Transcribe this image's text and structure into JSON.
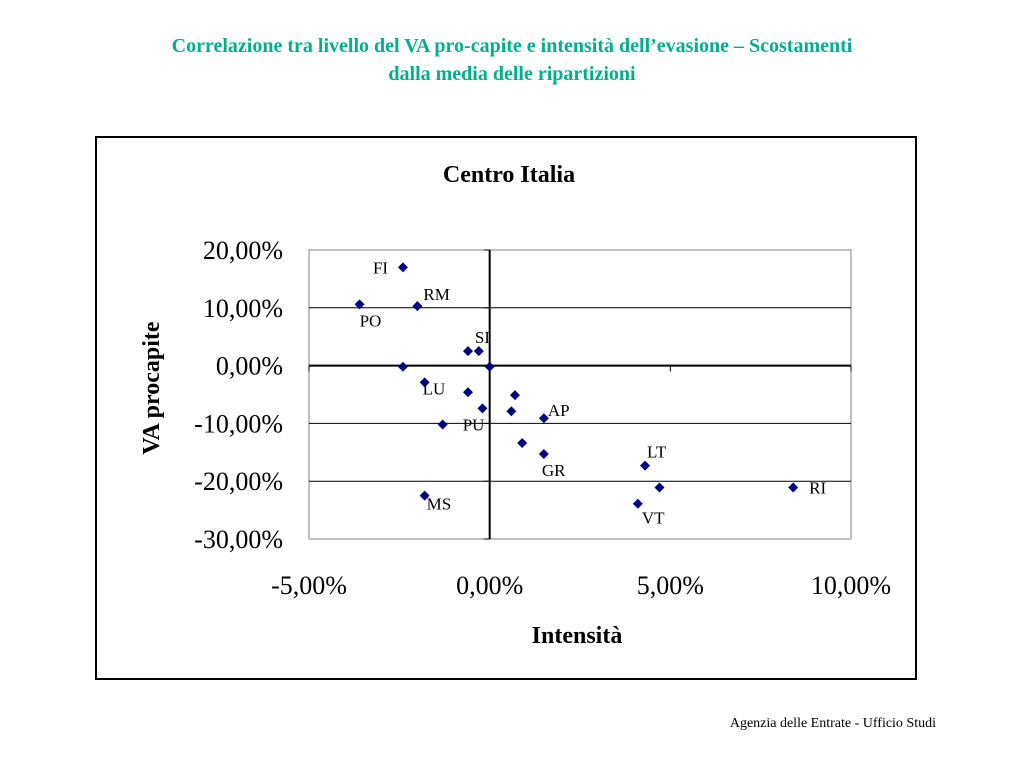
{
  "page": {
    "title_line1": "Correlazione tra livello del VA pro-capite e intensità dell’evasione – Scostamenti",
    "title_line2": "dalla media delle ripartizioni",
    "footer": "Agenzia delle Entrate - Ufficio Studi",
    "title_color": "#00b08c"
  },
  "chart_data": {
    "type": "scatter",
    "title": "Centro Italia",
    "xlabel": "Intensità",
    "ylabel": "VA procapite",
    "xlim": [
      -5,
      10
    ],
    "ylim": [
      -30,
      20
    ],
    "x_ticks": [
      "-5,00%",
      "0,00%",
      "5,00%",
      "10,00%"
    ],
    "y_ticks": [
      "20,00%",
      "10,00%",
      "0,00%",
      "-10,00%",
      "-20,00%",
      "-30,00%"
    ],
    "grid": "horizontal",
    "marker_color": "#000080",
    "points": [
      {
        "label": "FI",
        "x": -2.4,
        "y": 17.0
      },
      {
        "label": "RM",
        "x": -2.0,
        "y": 10.3
      },
      {
        "label": "PO",
        "x": -3.6,
        "y": 10.6
      },
      {
        "label": "",
        "x": -0.6,
        "y": 2.5
      },
      {
        "label": "SI",
        "x": -0.3,
        "y": 2.5
      },
      {
        "label": "",
        "x": 0.0,
        "y": -0.2
      },
      {
        "label": "",
        "x": -2.4,
        "y": -0.2
      },
      {
        "label": "LU",
        "x": -1.8,
        "y": -2.9
      },
      {
        "label": "",
        "x": -0.6,
        "y": -4.6
      },
      {
        "label": "",
        "x": 0.7,
        "y": -5.1
      },
      {
        "label": "",
        "x": -0.2,
        "y": -7.4
      },
      {
        "label": "",
        "x": 0.6,
        "y": -7.9
      },
      {
        "label": "AP",
        "x": 1.5,
        "y": -9.1
      },
      {
        "label": "PU",
        "x": -1.3,
        "y": -10.2
      },
      {
        "label": "",
        "x": 0.9,
        "y": -13.4
      },
      {
        "label": "GR",
        "x": 1.5,
        "y": -15.3
      },
      {
        "label": "LT",
        "x": 4.3,
        "y": -17.3
      },
      {
        "label": "",
        "x": 4.7,
        "y": -21.1
      },
      {
        "label": "RI",
        "x": 8.4,
        "y": -21.1
      },
      {
        "label": "MS",
        "x": -1.8,
        "y": -22.5
      },
      {
        "label": "VT",
        "x": 4.1,
        "y": -23.9
      }
    ]
  }
}
